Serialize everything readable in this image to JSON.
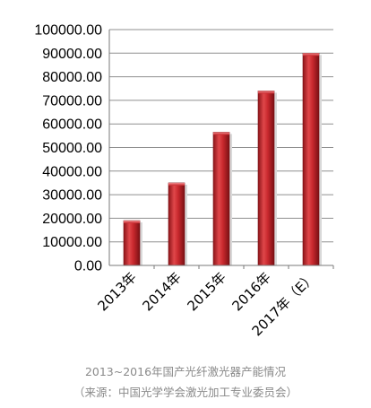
{
  "chart_data": {
    "type": "bar",
    "categories": [
      "2013年",
      "2014年",
      "2015年",
      "2016年",
      "2017年（E）"
    ],
    "values": [
      19000,
      35000,
      56500,
      74000,
      90000
    ],
    "ylim": [
      0,
      100000
    ],
    "yticks": [
      0,
      10000,
      20000,
      30000,
      40000,
      50000,
      60000,
      70000,
      80000,
      90000,
      100000
    ],
    "ytick_labels": [
      "0.00",
      "10000.00",
      "20000.00",
      "30000.00",
      "40000.00",
      "50000.00",
      "60000.00",
      "70000.00",
      "80000.00",
      "90000.00",
      "100000.00"
    ],
    "grid": true,
    "bar_color": "#c0282d"
  },
  "caption": {
    "title": "2013~2016年国产光纤激光器产能情况",
    "source": "（来源：中国光学学会激光加工专业委员会）"
  }
}
